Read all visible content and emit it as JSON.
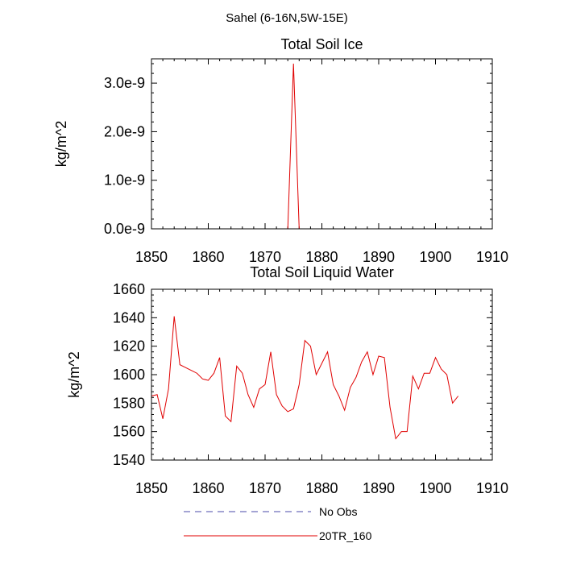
{
  "suptitle": "Sahel (6-16N,5W-15E)",
  "legend": {
    "placement": "bottom-center",
    "entries": [
      {
        "label": "No Obs",
        "color": "#4a4aa8",
        "style": "dashed"
      },
      {
        "label": "20TR_160",
        "color": "#e00000",
        "style": "solid"
      }
    ]
  },
  "chart_data": [
    {
      "type": "line",
      "title": "Total Soil Ice",
      "xlabel": "",
      "ylabel": "kg/m^2",
      "xlim": [
        1850,
        1910
      ],
      "ylim": [
        0,
        3.5e-09
      ],
      "xticks": [
        1850,
        1860,
        1870,
        1880,
        1890,
        1900,
        1910
      ],
      "xtick_labels": [
        "1850",
        "1860",
        "1870",
        "1880",
        "1890",
        "1900",
        "1910"
      ],
      "yticks": [
        0,
        1e-09,
        2e-09,
        3e-09
      ],
      "ytick_labels": [
        "0.0e-9",
        "1.0e-9",
        "2.0e-9",
        "3.0e-9"
      ],
      "series": [
        {
          "name": "20TR_160",
          "color": "#e00000",
          "x": [
            1850,
            1851,
            1852,
            1853,
            1854,
            1855,
            1856,
            1857,
            1858,
            1859,
            1860,
            1861,
            1862,
            1863,
            1864,
            1865,
            1866,
            1867,
            1868,
            1869,
            1870,
            1871,
            1872,
            1873,
            1874,
            1875,
            1876,
            1877,
            1878,
            1879,
            1880,
            1881,
            1882,
            1883,
            1884,
            1885,
            1886,
            1887,
            1888,
            1889,
            1890,
            1891,
            1892,
            1893,
            1894,
            1895,
            1896,
            1897,
            1898,
            1899,
            1900,
            1901,
            1902,
            1903,
            1904
          ],
          "values": [
            0,
            0,
            0,
            0,
            0,
            0,
            0,
            0,
            0,
            0,
            0,
            0,
            0,
            0,
            0,
            0,
            0,
            0,
            0,
            0,
            0,
            0,
            0,
            0,
            0,
            3.4e-09,
            0,
            0,
            0,
            0,
            0,
            0,
            0,
            0,
            0,
            0,
            0,
            0,
            0,
            0,
            0,
            0,
            0,
            0,
            0,
            0,
            0,
            0,
            0,
            0,
            0,
            0,
            0,
            0,
            0
          ]
        }
      ]
    },
    {
      "type": "line",
      "title": "Total Soil Liquid Water",
      "xlabel": "",
      "ylabel": "kg/m^2",
      "xlim": [
        1850,
        1910
      ],
      "ylim": [
        1540,
        1660
      ],
      "xticks": [
        1850,
        1860,
        1870,
        1880,
        1890,
        1900,
        1910
      ],
      "xtick_labels": [
        "1850",
        "1860",
        "1870",
        "1880",
        "1890",
        "1900",
        "1910"
      ],
      "yticks": [
        1540,
        1560,
        1580,
        1600,
        1620,
        1640,
        1660
      ],
      "ytick_labels": [
        "1540",
        "1560",
        "1580",
        "1600",
        "1620",
        "1640",
        "1660"
      ],
      "series": [
        {
          "name": "20TR_160",
          "color": "#e00000",
          "x": [
            1850,
            1851,
            1852,
            1853,
            1854,
            1855,
            1856,
            1857,
            1858,
            1859,
            1860,
            1861,
            1862,
            1863,
            1864,
            1865,
            1866,
            1867,
            1868,
            1869,
            1870,
            1871,
            1872,
            1873,
            1874,
            1875,
            1876,
            1877,
            1878,
            1879,
            1880,
            1881,
            1882,
            1883,
            1884,
            1885,
            1886,
            1887,
            1888,
            1889,
            1890,
            1891,
            1892,
            1893,
            1894,
            1895,
            1896,
            1897,
            1898,
            1899,
            1900,
            1901,
            1902,
            1903,
            1904
          ],
          "values": [
            1585,
            1586,
            1569,
            1590,
            1641,
            1607,
            1605,
            1603,
            1601,
            1597,
            1596,
            1601,
            1612,
            1571,
            1567,
            1606,
            1601,
            1586,
            1577,
            1590,
            1593,
            1616,
            1586,
            1578,
            1574,
            1576,
            1593,
            1624,
            1620,
            1600,
            1608,
            1616,
            1593,
            1585,
            1575,
            1591,
            1598,
            1609,
            1616,
            1600,
            1613,
            1612,
            1577,
            1555,
            1560,
            1560,
            1599,
            1590,
            1601,
            1601,
            1612,
            1604,
            1600,
            1580,
            1585
          ]
        }
      ]
    }
  ]
}
